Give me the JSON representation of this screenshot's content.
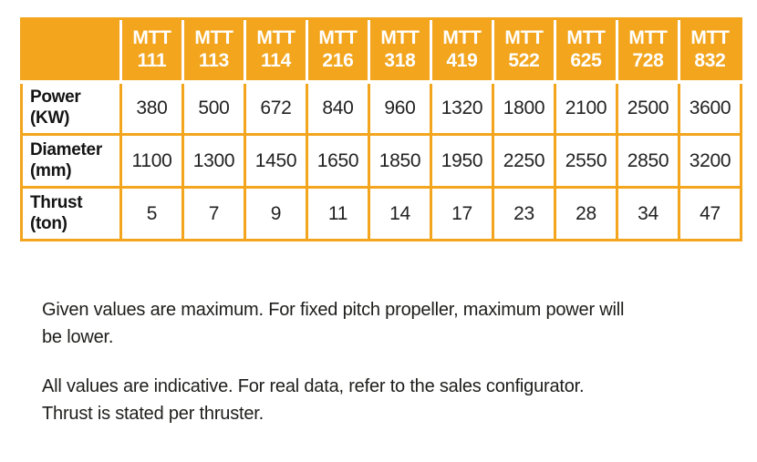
{
  "colors": {
    "accent_orange": "#F2A51D",
    "header_text": "#FFFFFF",
    "body_text": "#1D1D1B"
  },
  "table": {
    "header": {
      "corner": "",
      "models": [
        {
          "brand": "MTT",
          "code": "111"
        },
        {
          "brand": "MTT",
          "code": "113"
        },
        {
          "brand": "MTT",
          "code": "114"
        },
        {
          "brand": "MTT",
          "code": "216"
        },
        {
          "brand": "MTT",
          "code": "318"
        },
        {
          "brand": "MTT",
          "code": "419"
        },
        {
          "brand": "MTT",
          "code": "522"
        },
        {
          "brand": "MTT",
          "code": "625"
        },
        {
          "brand": "MTT",
          "code": "728"
        },
        {
          "brand": "MTT",
          "code": "832"
        }
      ]
    },
    "rows": [
      {
        "label": "Power\n(KW)",
        "values": [
          "380",
          "500",
          "672",
          "840",
          "960",
          "1320",
          "1800",
          "2100",
          "2500",
          "3600"
        ]
      },
      {
        "label": "Diameter\n(mm)",
        "values": [
          "1100",
          "1300",
          "1450",
          "1650",
          "1850",
          "1950",
          "2250",
          "2550",
          "2850",
          "3200"
        ]
      },
      {
        "label": "Thrust\n(ton)",
        "values": [
          "5",
          "7",
          "9",
          "11",
          "14",
          "17",
          "23",
          "28",
          "34",
          "47"
        ]
      }
    ]
  },
  "notes": [
    {
      "text": "Given values are maximum. For fixed pitch propeller, maximum power will\nbe lower."
    },
    {
      "text": "All values are indicative. For real data, refer to the sales configurator.\nThrust is stated per thruster."
    }
  ],
  "chart_data": {
    "type": "table",
    "columns": [
      "MTT 111",
      "MTT 113",
      "MTT 114",
      "MTT 216",
      "MTT 318",
      "MTT 419",
      "MTT 522",
      "MTT 625",
      "MTT 728",
      "MTT 832"
    ],
    "rows": [
      {
        "label": "Power (KW)",
        "values": [
          380,
          500,
          672,
          840,
          960,
          1320,
          1800,
          2100,
          2500,
          3600
        ]
      },
      {
        "label": "Diameter (mm)",
        "values": [
          1100,
          1300,
          1450,
          1650,
          1850,
          1950,
          2250,
          2550,
          2850,
          3200
        ]
      },
      {
        "label": "Thrust (ton)",
        "values": [
          5,
          7,
          9,
          11,
          14,
          17,
          23,
          28,
          34,
          47
        ]
      }
    ]
  }
}
